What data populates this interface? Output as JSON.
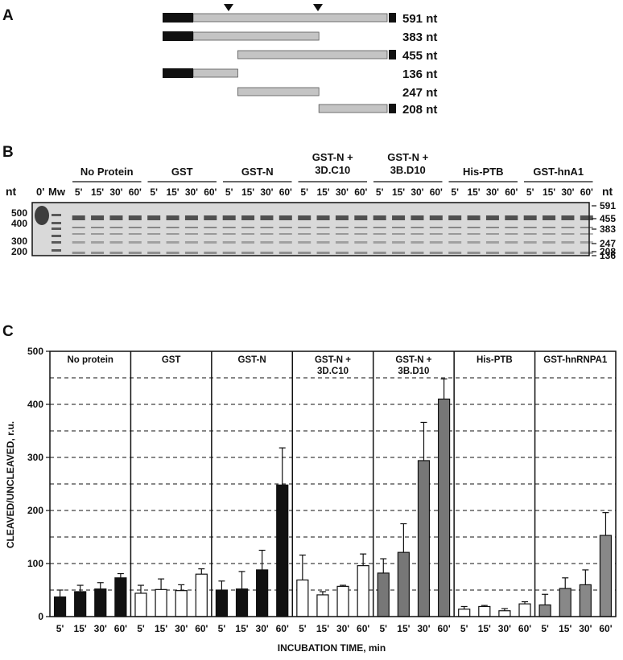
{
  "panels": {
    "a": "A",
    "b": "B",
    "c": "C"
  },
  "panel_a": {
    "fragments": [
      {
        "label": "591 nt",
        "start": 0,
        "end": 591,
        "cap5": true,
        "cap3": true
      },
      {
        "label": "383 nt",
        "start": 0,
        "end": 383,
        "cap5": true,
        "cap3": false
      },
      {
        "label": "455 nt",
        "start": 136,
        "end": 591,
        "cap5": false,
        "cap3": true
      },
      {
        "label": "136 nt",
        "start": 0,
        "end": 136,
        "cap5": true,
        "cap3": false
      },
      {
        "label": "247 nt",
        "start": 136,
        "end": 383,
        "cap5": false,
        "cap3": false
      },
      {
        "label": "208 nt",
        "start": 383,
        "end": 591,
        "cap5": false,
        "cap3": true
      }
    ],
    "cleavage_sites": [
      136,
      383
    ]
  },
  "panel_b": {
    "nt_label": "nt",
    "zero_label": "0'",
    "mw_label": "Mw",
    "groups": [
      {
        "lines": [
          "No Protein"
        ]
      },
      {
        "lines": [
          "GST"
        ]
      },
      {
        "lines": [
          "GST-N"
        ]
      },
      {
        "lines": [
          "GST-N +",
          "3D.C10"
        ]
      },
      {
        "lines": [
          "GST-N +",
          "3B.D10"
        ]
      },
      {
        "lines": [
          "His-PTB"
        ]
      },
      {
        "lines": [
          "GST-hnA1"
        ]
      }
    ],
    "times": [
      "5'",
      "15'",
      "30'",
      "60'"
    ],
    "left_markers": [
      "500",
      "400",
      "300",
      "200"
    ],
    "right_markers": [
      "591",
      "455",
      "383",
      "247",
      "208",
      "136"
    ]
  },
  "chart_data": {
    "type": "bar",
    "ylabel": "CLEAVED/UNCLEAVED, r.u.",
    "xlabel": "INCUBATION TIME, min",
    "ylim": [
      0,
      500
    ],
    "yticks": [
      0,
      100,
      200,
      300,
      400,
      500
    ],
    "grid": "dashed, every 50",
    "categories": [
      "5'",
      "15'",
      "30'",
      "60'"
    ],
    "groups": [
      {
        "name": "No protein",
        "values": [
          37,
          47,
          52,
          73
        ],
        "errors": [
          13,
          12,
          12,
          8
        ],
        "color": "#111111"
      },
      {
        "name": "GST",
        "values": [
          44,
          51,
          49,
          80
        ],
        "errors": [
          15,
          20,
          11,
          10
        ],
        "color": "#ffffff"
      },
      {
        "name": "GST-N",
        "values": [
          50,
          52,
          88,
          248
        ],
        "errors": [
          17,
          33,
          37,
          70
        ],
        "color": "#111111"
      },
      {
        "name": "GST-N + 3D.C10",
        "values": [
          69,
          41,
          57,
          96
        ],
        "errors": [
          47,
          6,
          2,
          22
        ],
        "color": "#ffffff"
      },
      {
        "name": "GST-N + 3B.D10",
        "values": [
          82,
          121,
          294,
          410
        ],
        "errors": [
          27,
          54,
          72,
          38
        ],
        "color": "#777777"
      },
      {
        "name": "His-PTB",
        "values": [
          14,
          19,
          11,
          24
        ],
        "errors": [
          5,
          2,
          4,
          4
        ],
        "color": "#ffffff"
      },
      {
        "name": "GST-hnRNPA1",
        "values": [
          22,
          53,
          60,
          153
        ],
        "errors": [
          20,
          20,
          28,
          43
        ],
        "color": "#888888"
      }
    ]
  }
}
